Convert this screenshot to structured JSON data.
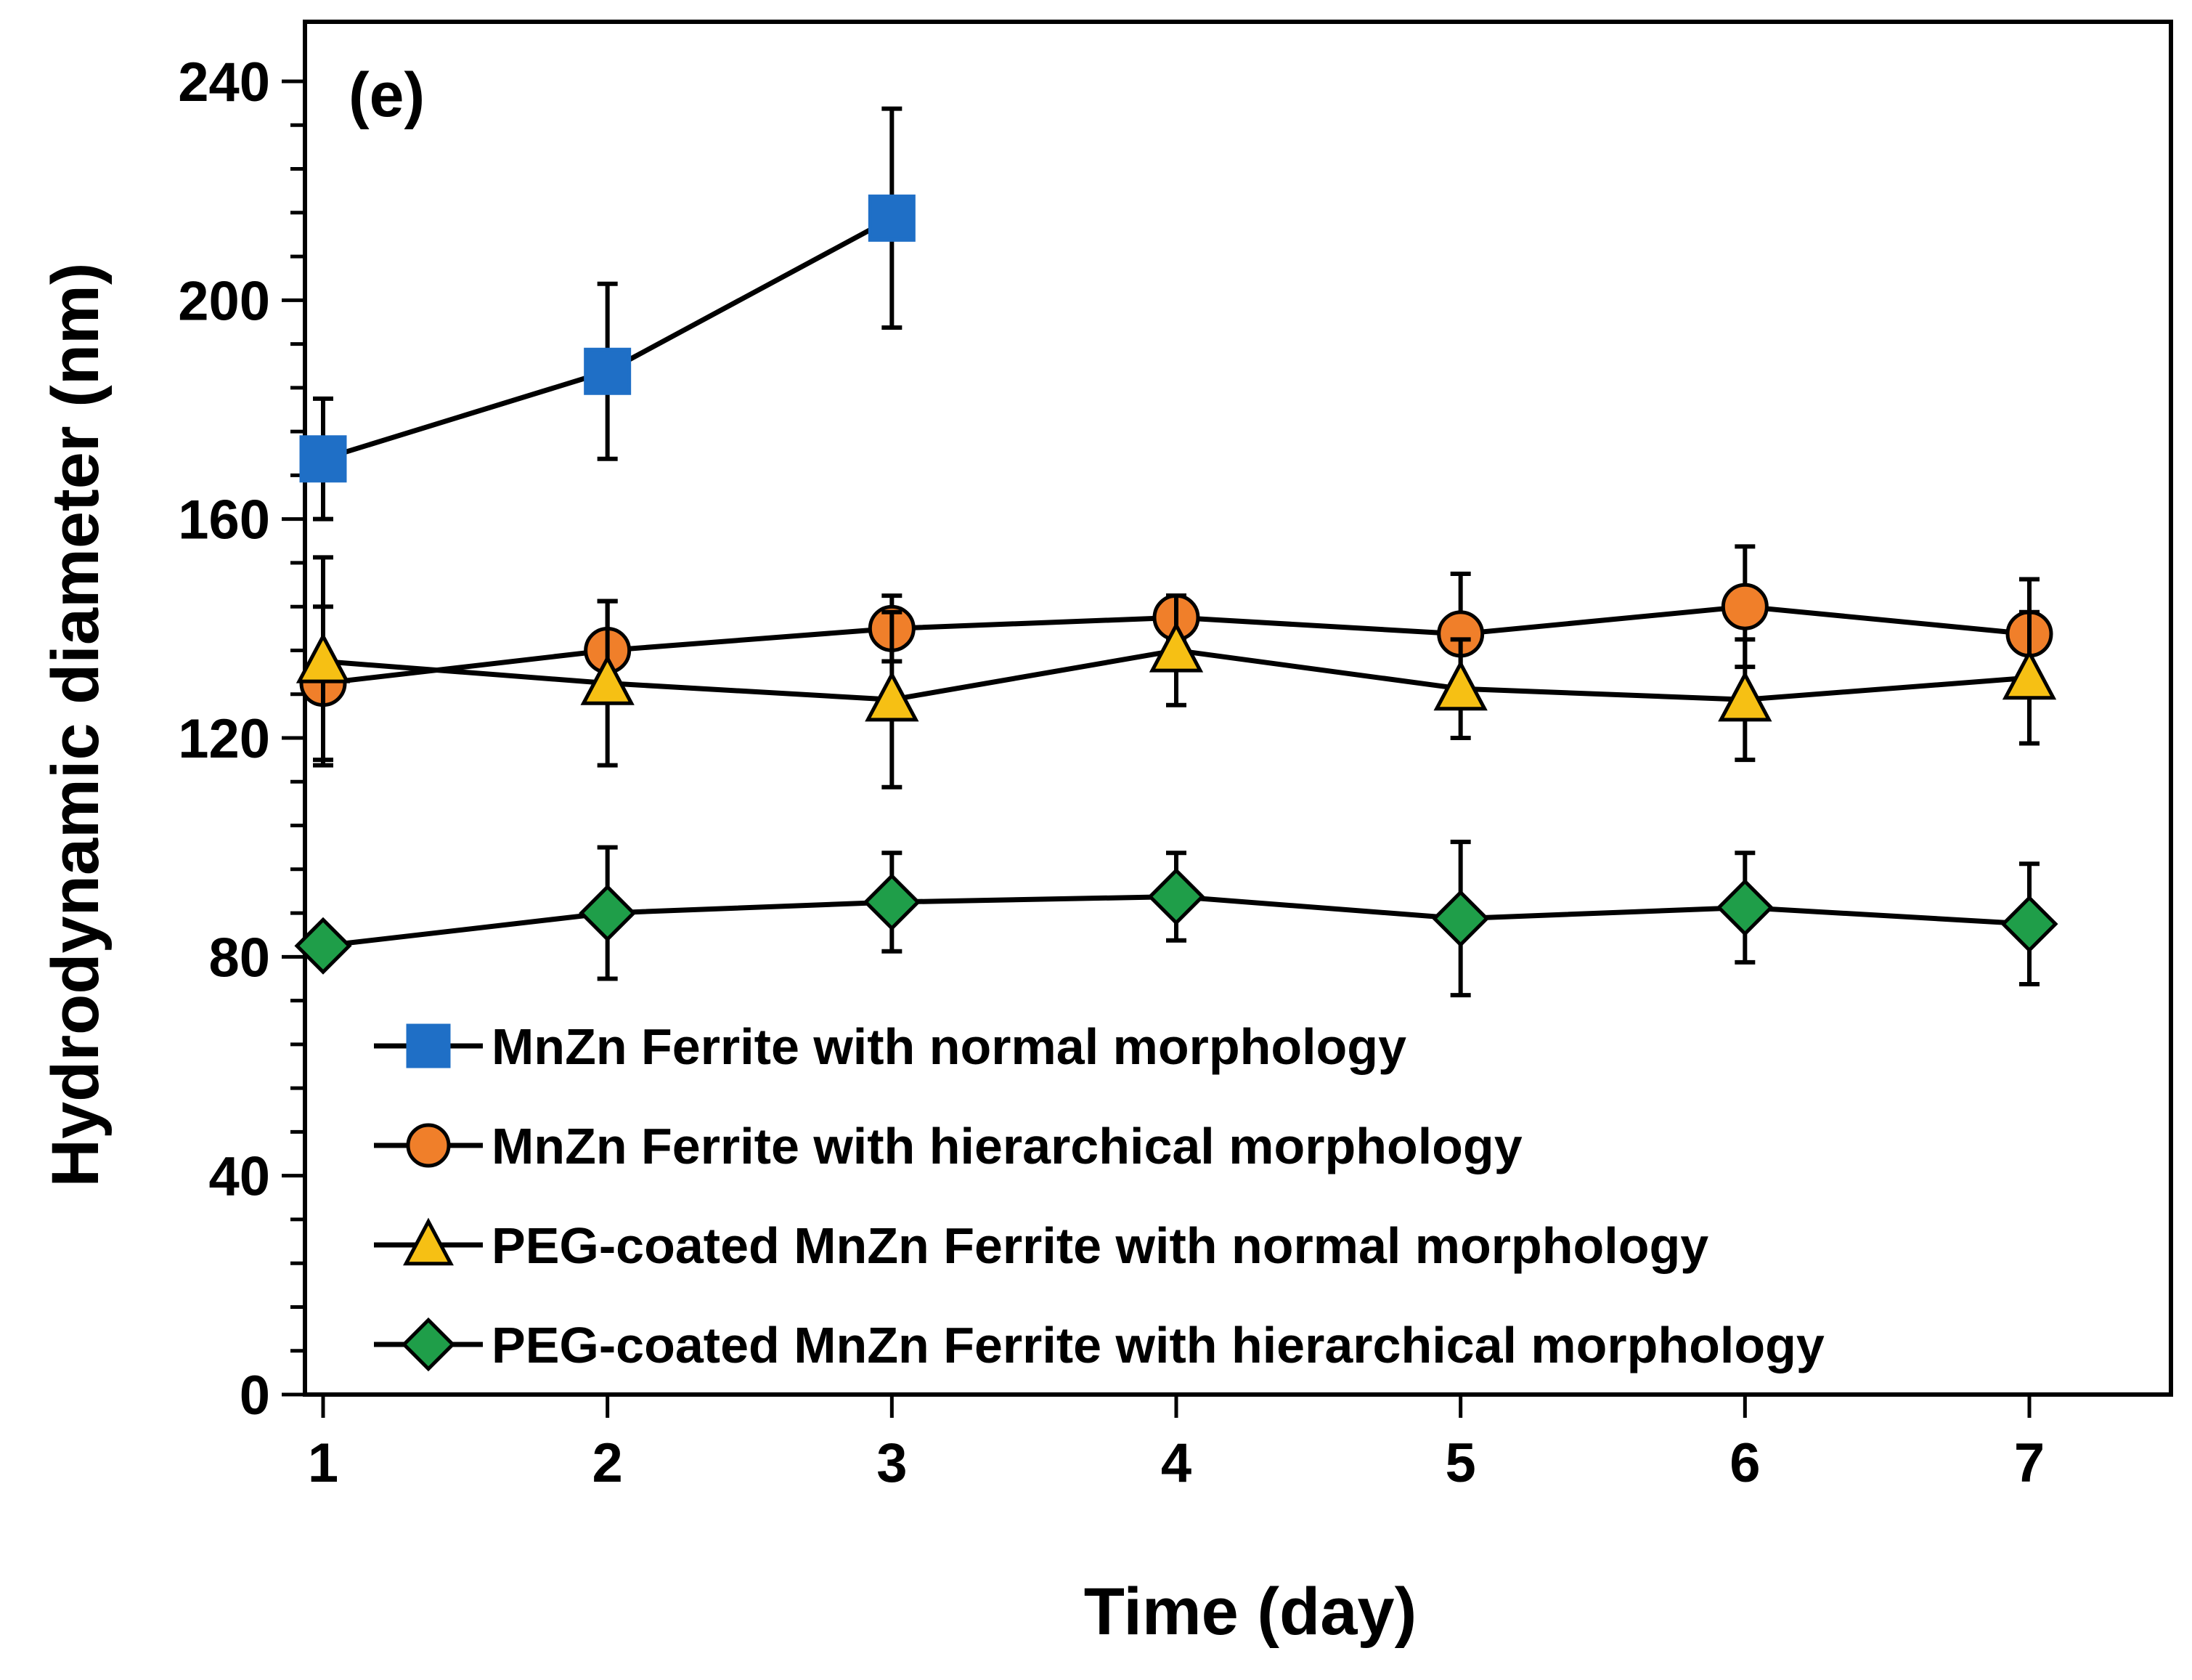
{
  "chart_data": {
    "type": "line",
    "panel_label": "(e)",
    "xlabel": "Time (day)",
    "ylabel": "Hydrodynamic diameter  (nm)",
    "xlim": [
      1,
      7
    ],
    "ylim": [
      0,
      240
    ],
    "x_ticks": [
      1,
      2,
      3,
      4,
      5,
      6,
      7
    ],
    "y_ticks": [
      0,
      40,
      80,
      120,
      160,
      200,
      240
    ],
    "y_minor_step": 8,
    "grid": false,
    "legend_position": "bottom-left",
    "series": [
      {
        "name": "MnZn Ferrite with normal morphology",
        "marker": "square",
        "color": "#1f6fc6",
        "x": [
          1,
          2,
          3
        ],
        "y": [
          171,
          187,
          215
        ],
        "error": [
          11,
          16,
          20
        ]
      },
      {
        "name": "MnZn Ferrite with hierarchical morphology",
        "marker": "circle",
        "color": "#f07f2a",
        "x": [
          1,
          2,
          3,
          4,
          5,
          6,
          7
        ],
        "y": [
          130,
          136,
          140,
          142,
          139,
          144,
          139
        ],
        "error": [
          14,
          9,
          6,
          4,
          11,
          11,
          10
        ]
      },
      {
        "name": "PEG-coated MnZn Ferrite with normal morphology",
        "marker": "triangle",
        "color": "#f6c014",
        "x": [
          1,
          2,
          3,
          4,
          5,
          6,
          7
        ],
        "y": [
          134,
          130,
          127,
          136,
          129,
          127,
          131
        ],
        "error": [
          19,
          15,
          16,
          10,
          9,
          11,
          12
        ]
      },
      {
        "name": "PEG-coated MnZn Ferrite with hierarchical morphology",
        "marker": "diamond",
        "color": "#1f9e49",
        "x": [
          1,
          2,
          3,
          4,
          5,
          6,
          7
        ],
        "y": [
          82,
          88,
          90,
          91,
          87,
          89,
          86
        ],
        "error": [
          0,
          12,
          9,
          8,
          14,
          10,
          11
        ]
      }
    ]
  }
}
